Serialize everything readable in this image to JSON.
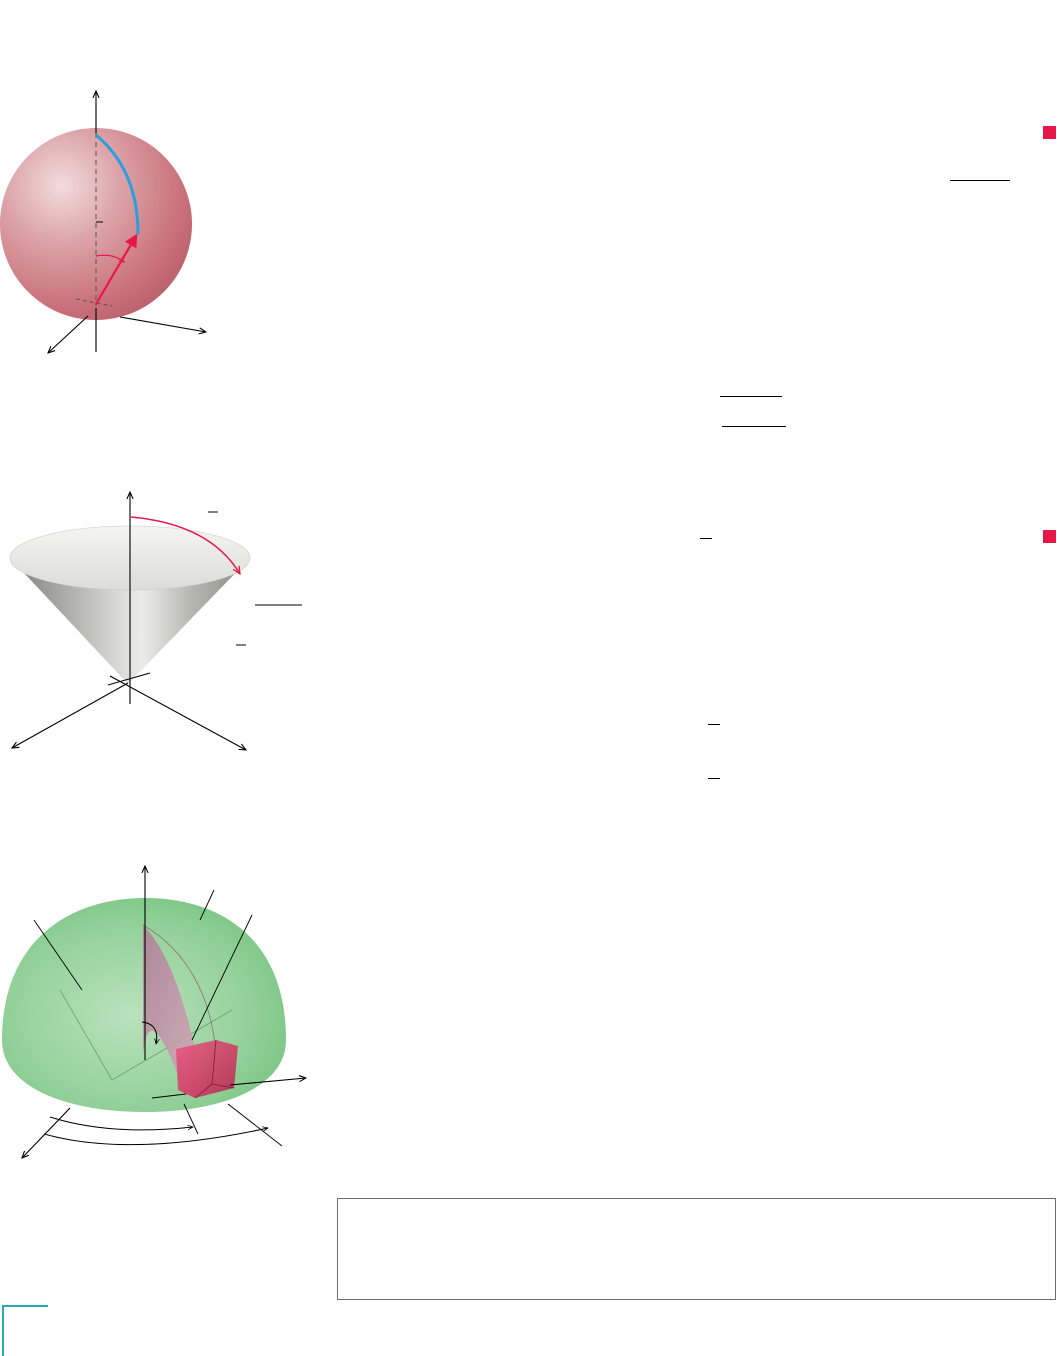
{
  "page": {
    "figures": [
      {
        "name": "sphere-figure"
      },
      {
        "name": "cone-figure"
      },
      {
        "name": "hemisphere-figure"
      }
    ],
    "colors": {
      "sphere_fill": "#c9707a",
      "cone_fill": "#b9b9b5",
      "hemisphere_fill": "#8fcf95",
      "wedge_fill": "#c58aa2",
      "box_fill": "#d83c66",
      "arc_blue": "#2a9fe0",
      "arrow_red": "#e8174a",
      "end_of_proof_marker": "#e8174a",
      "frame_border": "#6e6e6e",
      "corner_rule": "#2aa8b4"
    },
    "icons": [
      "end-of-proof-marker-icon",
      "end-of-proof-marker-icon"
    ]
  }
}
